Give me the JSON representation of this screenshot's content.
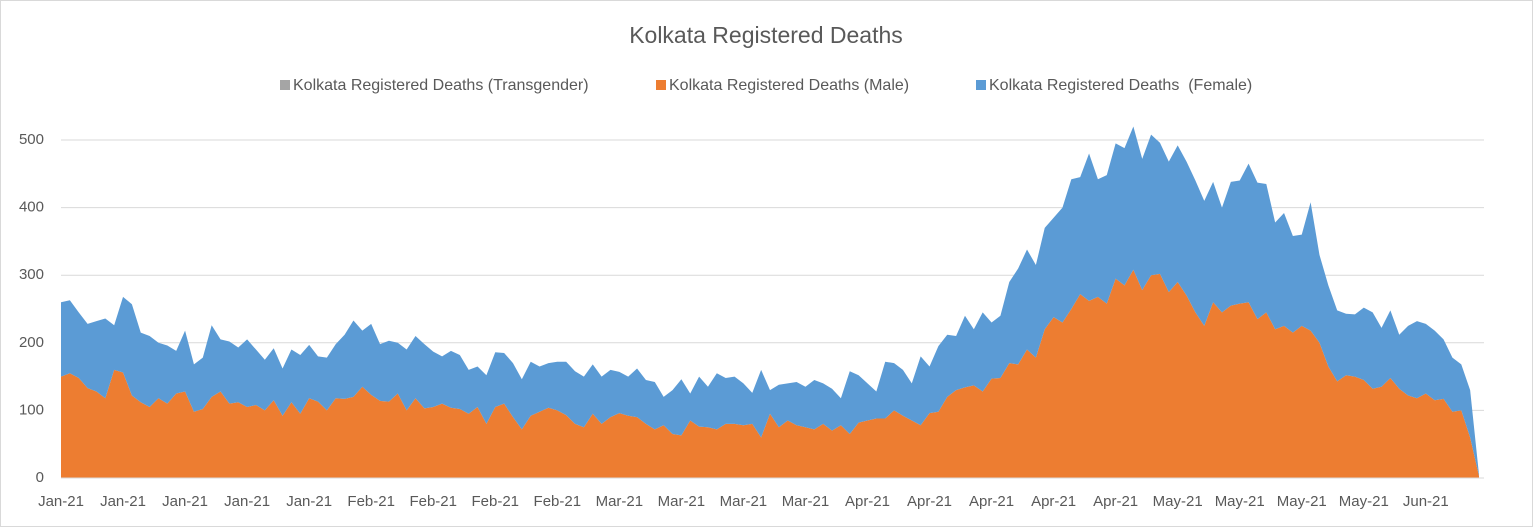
{
  "chart_data": {
    "type": "stacked-area",
    "title": "Kolkata Registered Deaths",
    "categories": [
      "Jan-21",
      null,
      null,
      null,
      null,
      null,
      null,
      "Jan-21",
      null,
      null,
      null,
      null,
      null,
      null,
      "Jan-21",
      null,
      null,
      null,
      null,
      null,
      null,
      "Jan-21",
      null,
      null,
      null,
      null,
      null,
      null,
      "Jan-21",
      null,
      null,
      null,
      null,
      null,
      null,
      "Feb-21",
      null,
      null,
      null,
      null,
      null,
      null,
      "Feb-21",
      null,
      null,
      null,
      null,
      null,
      null,
      "Feb-21",
      null,
      null,
      null,
      null,
      null,
      null,
      "Feb-21",
      null,
      null,
      null,
      null,
      null,
      null,
      "Mar-21",
      null,
      null,
      null,
      null,
      null,
      null,
      "Mar-21",
      null,
      null,
      null,
      null,
      null,
      null,
      "Mar-21",
      null,
      null,
      null,
      null,
      null,
      null,
      "Mar-21",
      null,
      null,
      null,
      null,
      null,
      null,
      "Apr-21",
      null,
      null,
      null,
      null,
      null,
      null,
      "Apr-21",
      null,
      null,
      null,
      null,
      null,
      null,
      "Apr-21",
      null,
      null,
      null,
      null,
      null,
      null,
      "Apr-21",
      null,
      null,
      null,
      null,
      null,
      null,
      "Apr-21",
      null,
      null,
      null,
      null,
      null,
      null,
      "May-21",
      null,
      null,
      null,
      null,
      null,
      null,
      "May-21",
      null,
      null,
      null,
      null,
      null,
      null,
      "May-21",
      null,
      null,
      null,
      null,
      null,
      null,
      "May-21",
      null,
      null,
      null,
      null,
      null,
      null,
      "Jun-21",
      null,
      null,
      null,
      null,
      null,
      null
    ],
    "series": [
      {
        "name": "Kolkata Registered Deaths (Transgender)",
        "color": "#a5a5a5",
        "values": [
          0,
          0,
          0,
          0,
          0,
          0,
          0,
          0,
          0,
          0,
          0,
          0,
          0,
          0,
          0,
          0,
          0,
          0,
          0,
          0,
          0,
          0,
          0,
          0,
          0,
          0,
          0,
          0,
          0,
          0,
          0,
          0,
          0,
          0,
          0,
          0,
          0,
          0,
          0,
          0,
          0,
          0,
          0,
          0,
          0,
          0,
          0,
          0,
          0,
          0,
          0,
          0,
          0,
          0,
          0,
          0,
          0,
          0,
          0,
          0,
          0,
          0,
          0,
          0,
          0,
          0,
          0,
          0,
          0,
          0,
          0,
          0,
          0,
          0,
          0,
          0,
          0,
          0,
          0,
          0,
          0,
          0,
          0,
          0,
          0,
          0,
          0,
          0,
          0,
          0,
          0,
          0,
          0,
          0,
          0,
          0,
          0,
          0,
          0,
          0,
          0,
          0,
          0,
          0,
          0,
          0,
          0,
          0,
          0,
          0,
          0,
          0,
          0,
          0,
          0,
          0,
          0,
          0,
          0,
          0,
          0,
          0,
          0,
          0,
          0,
          0,
          0,
          0,
          0,
          0,
          0,
          0,
          0,
          0,
          0,
          0,
          0,
          0,
          0,
          0,
          0,
          0,
          0,
          0,
          0,
          0,
          0,
          0,
          0,
          0,
          0,
          0,
          0,
          0,
          0,
          0,
          0,
          0,
          0,
          0,
          0
        ]
      },
      {
        "name": "Kolkata Registered Deaths (Male)",
        "color": "#ed7d31",
        "values": [
          150,
          155,
          148,
          133,
          128,
          118,
          160,
          156,
          122,
          112,
          105,
          118,
          110,
          125,
          128,
          98,
          102,
          120,
          128,
          110,
          112,
          105,
          108,
          100,
          115,
          92,
          112,
          95,
          118,
          113,
          100,
          118,
          117,
          120,
          135,
          123,
          114,
          113,
          125,
          100,
          118,
          103,
          105,
          110,
          104,
          102,
          95,
          105,
          80,
          105,
          110,
          90,
          72,
          92,
          98,
          104,
          100,
          93,
          80,
          75,
          95,
          80,
          90,
          96,
          92,
          90,
          80,
          72,
          78,
          65,
          63,
          85,
          76,
          75,
          72,
          80,
          80,
          78,
          80,
          60,
          95,
          75,
          85,
          78,
          75,
          72,
          80,
          70,
          78,
          65,
          82,
          85,
          88,
          88,
          100,
          92,
          85,
          78,
          96,
          98,
          120,
          130,
          134,
          137,
          128,
          147,
          148,
          170,
          168,
          190,
          178,
          220,
          238,
          230,
          250,
          272,
          262,
          268,
          258,
          295,
          285,
          308,
          278,
          300,
          302,
          275,
          290,
          270,
          245,
          225,
          260,
          245,
          255,
          258,
          260,
          235,
          245,
          220,
          225,
          215,
          225,
          218,
          200,
          165,
          143,
          152,
          150,
          145,
          132,
          135,
          148,
          132,
          122,
          118,
          125,
          115,
          117,
          98,
          100,
          60,
          3
        ]
      },
      {
        "name": "Kolkata Registered Deaths  (Female)",
        "color": "#5b9bd5",
        "values": [
          110,
          108,
          97,
          95,
          104,
          118,
          66,
          112,
          135,
          103,
          105,
          82,
          86,
          63,
          90,
          70,
          76,
          106,
          77,
          92,
          81,
          100,
          82,
          75,
          77,
          70,
          78,
          87,
          79,
          67,
          78,
          80,
          95,
          113,
          83,
          105,
          84,
          90,
          75,
          90,
          92,
          95,
          82,
          70,
          84,
          80,
          65,
          60,
          72,
          81,
          75,
          80,
          74,
          80,
          67,
          66,
          72,
          79,
          78,
          75,
          73,
          70,
          70,
          61,
          58,
          72,
          65,
          70,
          42,
          65,
          83,
          40,
          74,
          60,
          83,
          68,
          70,
          62,
          46,
          100,
          35,
          63,
          55,
          64,
          60,
          73,
          60,
          62,
          40,
          93,
          70,
          55,
          40,
          84,
          70,
          68,
          55,
          102,
          69,
          97,
          92,
          80,
          106,
          83,
          117,
          83,
          92,
          120,
          142,
          148,
          137,
          150,
          147,
          170,
          192,
          173,
          218,
          174,
          190,
          200,
          203,
          212,
          194,
          208,
          194,
          193,
          202,
          198,
          195,
          185,
          178,
          155,
          183,
          182,
          205,
          202,
          190,
          158,
          167,
          143,
          135,
          190,
          130,
          120,
          105,
          91,
          92,
          107,
          113,
          87,
          100,
          80,
          103,
          114,
          103,
          103,
          88,
          80,
          68,
          70,
          2
        ]
      }
    ],
    "ylim": [
      0,
      520
    ],
    "yticks": [
      0,
      100,
      200,
      300,
      400,
      500
    ],
    "grid": true,
    "legend": "top"
  }
}
